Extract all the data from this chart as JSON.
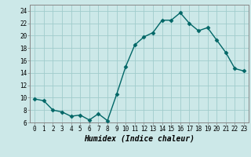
{
  "x": [
    0,
    1,
    2,
    3,
    4,
    5,
    6,
    7,
    8,
    9,
    10,
    11,
    12,
    13,
    14,
    15,
    16,
    17,
    18,
    19,
    20,
    21,
    22,
    23
  ],
  "y": [
    9.8,
    9.5,
    8.0,
    7.7,
    7.0,
    7.2,
    6.4,
    7.4,
    6.3,
    10.5,
    15.0,
    18.5,
    19.8,
    20.5,
    22.5,
    22.5,
    23.7,
    22.0,
    20.8,
    21.3,
    19.3,
    17.3,
    14.7,
    14.3
  ],
  "line_color": "#006666",
  "marker": "D",
  "markersize": 2.5,
  "linewidth": 1.0,
  "xlabel": "Humidex (Indice chaleur)",
  "xlabel_fontsize": 7,
  "xlabel_fontweight": "bold",
  "ylim": [
    6,
    25
  ],
  "xlim": [
    -0.5,
    23.5
  ],
  "yticks": [
    6,
    8,
    10,
    12,
    14,
    16,
    18,
    20,
    22,
    24
  ],
  "xtick_labels": [
    "0",
    "1",
    "2",
    "3",
    "4",
    "5",
    "6",
    "7",
    "8",
    "9",
    "10",
    "11",
    "12",
    "13",
    "14",
    "15",
    "16",
    "17",
    "18",
    "19",
    "20",
    "21",
    "22",
    "23"
  ],
  "grid_color": "#a0cccc",
  "background_color": "#cce8e8",
  "tick_fontsize": 5.5,
  "spine_color": "#888888"
}
